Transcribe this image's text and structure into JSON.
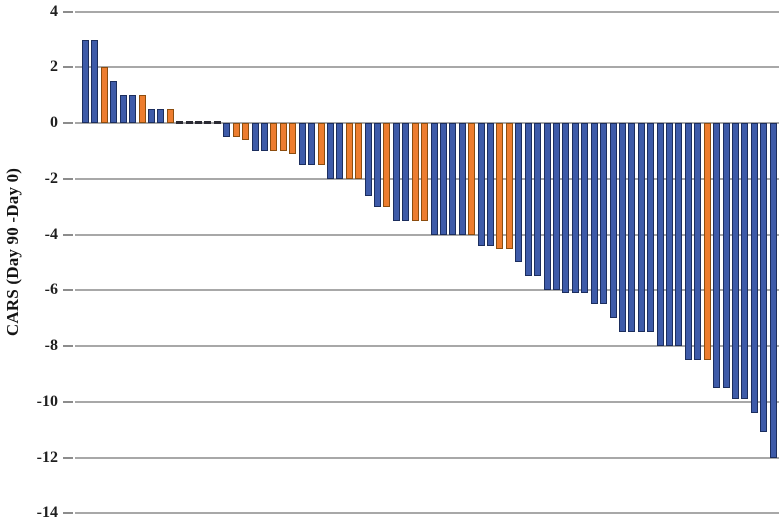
{
  "chart_data": {
    "type": "bar",
    "title": "",
    "xlabel": "",
    "ylabel": "CARS (Day 90 -Day 0)",
    "ylim": [
      -14,
      4
    ],
    "yticks": [
      4,
      2,
      0,
      -2,
      -4,
      -6,
      -8,
      -10,
      -12,
      -14
    ],
    "grid": "horizontal",
    "legend_position": "none",
    "x_axis_labels": "none",
    "colors": {
      "blue_fill": "#3E5BA9",
      "blue_border": "#1C2E5E",
      "orange_fill": "#ED7D2F",
      "orange_border": "#8C4D0F",
      "zero_dash": "#2A2A33",
      "gridline": "#A8A8A8",
      "tick": "#8C8C8C",
      "label_text": "#1F1F1F"
    },
    "bars": [
      {
        "v": 3.0,
        "c": "blue"
      },
      {
        "v": 3.0,
        "c": "blue"
      },
      {
        "v": 2.0,
        "c": "orange"
      },
      {
        "v": 1.5,
        "c": "blue"
      },
      {
        "v": 1.0,
        "c": "blue"
      },
      {
        "v": 1.0,
        "c": "blue"
      },
      {
        "v": 1.0,
        "c": "orange"
      },
      {
        "v": 0.5,
        "c": "blue"
      },
      {
        "v": 0.5,
        "c": "blue"
      },
      {
        "v": 0.5,
        "c": "orange"
      },
      {
        "v": 0,
        "c": "zero"
      },
      {
        "v": 0,
        "c": "zero"
      },
      {
        "v": 0,
        "c": "zero"
      },
      {
        "v": 0,
        "c": "zero"
      },
      {
        "v": 0,
        "c": "zero"
      },
      {
        "v": -0.5,
        "c": "blue"
      },
      {
        "v": -0.5,
        "c": "orange"
      },
      {
        "v": -0.6,
        "c": "orange"
      },
      {
        "v": -1.0,
        "c": "blue"
      },
      {
        "v": -1.0,
        "c": "blue"
      },
      {
        "v": -1.0,
        "c": "orange"
      },
      {
        "v": -1.0,
        "c": "orange"
      },
      {
        "v": -1.1,
        "c": "orange"
      },
      {
        "v": -1.5,
        "c": "blue"
      },
      {
        "v": -1.5,
        "c": "blue"
      },
      {
        "v": -1.5,
        "c": "orange"
      },
      {
        "v": -2.0,
        "c": "blue"
      },
      {
        "v": -2.0,
        "c": "blue"
      },
      {
        "v": -2.0,
        "c": "orange"
      },
      {
        "v": -2.0,
        "c": "orange"
      },
      {
        "v": -2.6,
        "c": "blue"
      },
      {
        "v": -3.0,
        "c": "blue"
      },
      {
        "v": -3.0,
        "c": "orange"
      },
      {
        "v": -3.5,
        "c": "blue"
      },
      {
        "v": -3.5,
        "c": "blue"
      },
      {
        "v": -3.5,
        "c": "orange"
      },
      {
        "v": -3.5,
        "c": "orange"
      },
      {
        "v": -4.0,
        "c": "blue"
      },
      {
        "v": -4.0,
        "c": "blue"
      },
      {
        "v": -4.0,
        "c": "blue"
      },
      {
        "v": -4.0,
        "c": "blue"
      },
      {
        "v": -4.0,
        "c": "orange"
      },
      {
        "v": -4.4,
        "c": "blue"
      },
      {
        "v": -4.4,
        "c": "blue"
      },
      {
        "v": -4.5,
        "c": "orange"
      },
      {
        "v": -4.5,
        "c": "orange"
      },
      {
        "v": -5.0,
        "c": "blue"
      },
      {
        "v": -5.5,
        "c": "blue"
      },
      {
        "v": -5.5,
        "c": "blue"
      },
      {
        "v": -6.0,
        "c": "blue"
      },
      {
        "v": -6.0,
        "c": "blue"
      },
      {
        "v": -6.1,
        "c": "blue"
      },
      {
        "v": -6.1,
        "c": "blue"
      },
      {
        "v": -6.1,
        "c": "blue"
      },
      {
        "v": -6.5,
        "c": "blue"
      },
      {
        "v": -6.5,
        "c": "blue"
      },
      {
        "v": -7.0,
        "c": "blue"
      },
      {
        "v": -7.5,
        "c": "blue"
      },
      {
        "v": -7.5,
        "c": "blue"
      },
      {
        "v": -7.5,
        "c": "blue"
      },
      {
        "v": -7.5,
        "c": "blue"
      },
      {
        "v": -8.0,
        "c": "blue"
      },
      {
        "v": -8.0,
        "c": "blue"
      },
      {
        "v": -8.0,
        "c": "blue"
      },
      {
        "v": -8.5,
        "c": "blue"
      },
      {
        "v": -8.5,
        "c": "blue"
      },
      {
        "v": -8.5,
        "c": "orange"
      },
      {
        "v": -9.5,
        "c": "blue"
      },
      {
        "v": -9.5,
        "c": "blue"
      },
      {
        "v": -9.9,
        "c": "blue"
      },
      {
        "v": -9.9,
        "c": "blue"
      },
      {
        "v": -10.4,
        "c": "blue"
      },
      {
        "v": -11.1,
        "c": "blue"
      },
      {
        "v": -12.0,
        "c": "blue"
      }
    ]
  }
}
